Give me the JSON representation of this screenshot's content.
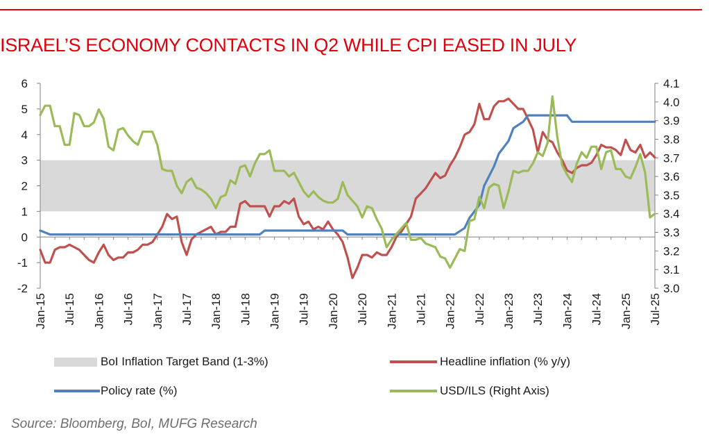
{
  "title": "ISRAEL’S ECONOMY CONTACTS IN Q2 WHILE CPI EASED IN JULY",
  "source": "Source: Bloomberg, BoI, MUFG Research",
  "colors": {
    "title": "#e0000b",
    "band": "#d9d9d9",
    "headline": "#c0504d",
    "policy": "#4f81bd",
    "usdils": "#9bbb59"
  },
  "legend": {
    "band": "BoI Inflation Target Band (1-3%)",
    "headline": "Headline inflation (% y/y)",
    "policy": "Policy rate (%)",
    "usdils": "USD/ILS (Right Axis)"
  },
  "chart_data": {
    "type": "line",
    "x_start": "Jan-15",
    "x_end": "Jul-25",
    "x_tick_labels": [
      "Jan-15",
      "Jul-15",
      "Jan-16",
      "Jul-16",
      "Jan-17",
      "Jul-17",
      "Jan-18",
      "Jul-18",
      "Jan-19",
      "Jul-19",
      "Jan-20",
      "Jul-20",
      "Jan-21",
      "Jul-21",
      "Jan-22",
      "Jul-22",
      "Jan-23",
      "Jul-23",
      "Jan-24",
      "Jul-24",
      "Jan-25",
      "Jul-25"
    ],
    "y_left": {
      "min": -2,
      "max": 6,
      "ticks": [
        "-2",
        "-1",
        "0",
        "1",
        "2",
        "3",
        "4",
        "5",
        "6"
      ]
    },
    "y_right": {
      "min": 3.0,
      "max": 4.1,
      "ticks": [
        "3.0",
        "3.1",
        "3.2",
        "3.3",
        "3.4",
        "3.5",
        "3.6",
        "3.7",
        "3.8",
        "3.9",
        "4.0",
        "4.1"
      ]
    },
    "band": {
      "name": "BoI Inflation Target Band (1-3%)",
      "low": 1,
      "high": 3
    },
    "series": [
      {
        "name": "Headline inflation (% y/y)",
        "axis": "left",
        "points": [
          [
            "Jan-15",
            -0.5
          ],
          [
            "Feb-15",
            -1.0
          ],
          [
            "Mar-15",
            -1.0
          ],
          [
            "Apr-15",
            -0.5
          ],
          [
            "May-15",
            -0.4
          ],
          [
            "Jun-15",
            -0.4
          ],
          [
            "Jul-15",
            -0.3
          ],
          [
            "Aug-15",
            -0.4
          ],
          [
            "Sep-15",
            -0.5
          ],
          [
            "Oct-15",
            -0.7
          ],
          [
            "Nov-15",
            -0.9
          ],
          [
            "Dec-15",
            -1.0
          ],
          [
            "Jan-16",
            -0.6
          ],
          [
            "Feb-16",
            -0.3
          ],
          [
            "Mar-16",
            -0.7
          ],
          [
            "Apr-16",
            -0.9
          ],
          [
            "May-16",
            -0.8
          ],
          [
            "Jun-16",
            -0.8
          ],
          [
            "Jul-16",
            -0.6
          ],
          [
            "Aug-16",
            -0.6
          ],
          [
            "Sep-16",
            -0.5
          ],
          [
            "Oct-16",
            -0.3
          ],
          [
            "Nov-16",
            -0.3
          ],
          [
            "Dec-16",
            -0.2
          ],
          [
            "Jan-17",
            0.1
          ],
          [
            "Feb-17",
            0.4
          ],
          [
            "Mar-17",
            0.9
          ],
          [
            "Apr-17",
            0.7
          ],
          [
            "May-17",
            0.8
          ],
          [
            "Jun-17",
            -0.2
          ],
          [
            "Jul-17",
            -0.7
          ],
          [
            "Aug-17",
            -0.1
          ],
          [
            "Sep-17",
            0.1
          ],
          [
            "Oct-17",
            0.2
          ],
          [
            "Nov-17",
            0.3
          ],
          [
            "Dec-17",
            0.4
          ],
          [
            "Jan-18",
            0.1
          ],
          [
            "Feb-18",
            0.2
          ],
          [
            "Mar-18",
            0.2
          ],
          [
            "Apr-18",
            0.4
          ],
          [
            "May-18",
            0.4
          ],
          [
            "Jun-18",
            1.3
          ],
          [
            "Jul-18",
            1.4
          ],
          [
            "Aug-18",
            1.2
          ],
          [
            "Sep-18",
            1.2
          ],
          [
            "Oct-18",
            1.2
          ],
          [
            "Nov-18",
            1.2
          ],
          [
            "Dec-18",
            0.8
          ],
          [
            "Jan-19",
            1.2
          ],
          [
            "Feb-19",
            1.2
          ],
          [
            "Mar-19",
            1.4
          ],
          [
            "Apr-19",
            1.3
          ],
          [
            "May-19",
            1.5
          ],
          [
            "Jun-19",
            0.8
          ],
          [
            "Jul-19",
            0.5
          ],
          [
            "Aug-19",
            0.6
          ],
          [
            "Sep-19",
            0.3
          ],
          [
            "Oct-19",
            0.4
          ],
          [
            "Nov-19",
            0.3
          ],
          [
            "Dec-19",
            0.6
          ],
          [
            "Jan-20",
            0.3
          ],
          [
            "Feb-20",
            0.1
          ],
          [
            "Mar-20",
            -0.2
          ],
          [
            "Apr-20",
            -0.8
          ],
          [
            "May-20",
            -1.6
          ],
          [
            "Jun-20",
            -1.2
          ],
          [
            "Jul-20",
            -0.7
          ],
          [
            "Aug-20",
            -0.7
          ],
          [
            "Sep-20",
            -0.8
          ],
          [
            "Oct-20",
            -0.6
          ],
          [
            "Nov-20",
            -0.7
          ],
          [
            "Dec-20",
            -0.7
          ],
          [
            "Jan-21",
            -0.4
          ],
          [
            "Feb-21",
            0.0
          ],
          [
            "Mar-21",
            0.2
          ],
          [
            "Apr-21",
            0.5
          ],
          [
            "May-21",
            0.8
          ],
          [
            "Jun-21",
            1.5
          ],
          [
            "Jul-21",
            1.7
          ],
          [
            "Aug-21",
            1.9
          ],
          [
            "Sep-21",
            2.2
          ],
          [
            "Oct-21",
            2.5
          ],
          [
            "Nov-21",
            2.3
          ],
          [
            "Dec-21",
            2.4
          ],
          [
            "Jan-22",
            2.8
          ],
          [
            "Feb-22",
            3.1
          ],
          [
            "Mar-22",
            3.5
          ],
          [
            "Apr-22",
            4.0
          ],
          [
            "May-22",
            4.1
          ],
          [
            "Jun-22",
            4.4
          ],
          [
            "Jul-22",
            5.2
          ],
          [
            "Aug-22",
            4.6
          ],
          [
            "Sep-22",
            4.6
          ],
          [
            "Oct-22",
            5.1
          ],
          [
            "Nov-22",
            5.3
          ],
          [
            "Dec-22",
            5.3
          ],
          [
            "Jan-23",
            5.4
          ],
          [
            "Feb-23",
            5.2
          ],
          [
            "Mar-23",
            5.0
          ],
          [
            "Apr-23",
            5.0
          ],
          [
            "May-23",
            4.6
          ],
          [
            "Jun-23",
            4.2
          ],
          [
            "Jul-23",
            3.3
          ],
          [
            "Aug-23",
            4.1
          ],
          [
            "Sep-23",
            3.8
          ],
          [
            "Oct-23",
            3.7
          ],
          [
            "Nov-23",
            3.3
          ],
          [
            "Dec-23",
            3.0
          ],
          [
            "Jan-24",
            2.6
          ],
          [
            "Feb-24",
            2.5
          ],
          [
            "Mar-24",
            2.7
          ],
          [
            "Apr-24",
            2.8
          ],
          [
            "May-24",
            2.8
          ],
          [
            "Jun-24",
            2.9
          ],
          [
            "Jul-24",
            3.2
          ],
          [
            "Aug-24",
            3.6
          ],
          [
            "Sep-24",
            3.5
          ],
          [
            "Oct-24",
            3.5
          ],
          [
            "Nov-24",
            3.4
          ],
          [
            "Dec-24",
            3.2
          ],
          [
            "Jan-25",
            3.8
          ],
          [
            "Feb-25",
            3.4
          ],
          [
            "Mar-25",
            3.3
          ],
          [
            "Apr-25",
            3.6
          ],
          [
            "May-25",
            3.1
          ],
          [
            "Jun-25",
            3.3
          ],
          [
            "Jul-25",
            3.1
          ]
        ]
      },
      {
        "name": "Policy rate (%)",
        "axis": "left",
        "points": [
          [
            "Jan-15",
            0.25
          ],
          [
            "Mar-15",
            0.1
          ],
          [
            "Oct-18",
            0.1
          ],
          [
            "Nov-18",
            0.25
          ],
          [
            "Mar-20",
            0.25
          ],
          [
            "Apr-20",
            0.1
          ],
          [
            "Feb-22",
            0.1
          ],
          [
            "Apr-22",
            0.35
          ],
          [
            "May-22",
            0.75
          ],
          [
            "Jul-22",
            1.25
          ],
          [
            "Aug-22",
            2.0
          ],
          [
            "Oct-22",
            2.75
          ],
          [
            "Nov-22",
            3.25
          ],
          [
            "Jan-23",
            3.75
          ],
          [
            "Feb-23",
            4.25
          ],
          [
            "Apr-23",
            4.5
          ],
          [
            "May-23",
            4.75
          ],
          [
            "Jan-24",
            4.75
          ],
          [
            "Feb-24",
            4.5
          ],
          [
            "Jul-25",
            4.5
          ]
        ]
      },
      {
        "name": "USD/ILS (Right Axis)",
        "axis": "right",
        "points": [
          [
            "Jan-15",
            3.93
          ],
          [
            "Feb-15",
            3.98
          ],
          [
            "Mar-15",
            3.98
          ],
          [
            "Apr-15",
            3.87
          ],
          [
            "May-15",
            3.87
          ],
          [
            "Jun-15",
            3.77
          ],
          [
            "Jul-15",
            3.77
          ],
          [
            "Aug-15",
            3.94
          ],
          [
            "Sep-15",
            3.93
          ],
          [
            "Oct-15",
            3.87
          ],
          [
            "Nov-15",
            3.87
          ],
          [
            "Dec-15",
            3.89
          ],
          [
            "Jan-16",
            3.96
          ],
          [
            "Feb-16",
            3.91
          ],
          [
            "Mar-16",
            3.76
          ],
          [
            "Apr-16",
            3.74
          ],
          [
            "May-16",
            3.85
          ],
          [
            "Jun-16",
            3.86
          ],
          [
            "Jul-16",
            3.82
          ],
          [
            "Aug-16",
            3.79
          ],
          [
            "Sep-16",
            3.77
          ],
          [
            "Oct-16",
            3.84
          ],
          [
            "Nov-16",
            3.84
          ],
          [
            "Dec-16",
            3.84
          ],
          [
            "Jan-17",
            3.77
          ],
          [
            "Feb-17",
            3.64
          ],
          [
            "Mar-17",
            3.63
          ],
          [
            "Apr-17",
            3.63
          ],
          [
            "May-17",
            3.55
          ],
          [
            "Jun-17",
            3.51
          ],
          [
            "Jul-17",
            3.57
          ],
          [
            "Aug-17",
            3.59
          ],
          [
            "Sep-17",
            3.54
          ],
          [
            "Oct-17",
            3.53
          ],
          [
            "Nov-17",
            3.51
          ],
          [
            "Dec-17",
            3.48
          ],
          [
            "Jan-18",
            3.43
          ],
          [
            "Feb-18",
            3.49
          ],
          [
            "Mar-18",
            3.5
          ],
          [
            "Apr-18",
            3.58
          ],
          [
            "May-18",
            3.56
          ],
          [
            "Jun-18",
            3.65
          ],
          [
            "Jul-18",
            3.66
          ],
          [
            "Aug-18",
            3.6
          ],
          [
            "Sep-18",
            3.67
          ],
          [
            "Oct-18",
            3.72
          ],
          [
            "Nov-18",
            3.72
          ],
          [
            "Dec-18",
            3.74
          ],
          [
            "Jan-19",
            3.63
          ],
          [
            "Feb-19",
            3.63
          ],
          [
            "Mar-19",
            3.63
          ],
          [
            "Apr-19",
            3.6
          ],
          [
            "May-19",
            3.62
          ],
          [
            "Jun-19",
            3.57
          ],
          [
            "Jul-19",
            3.52
          ],
          [
            "Aug-19",
            3.49
          ],
          [
            "Sep-19",
            3.52
          ],
          [
            "Oct-19",
            3.49
          ],
          [
            "Nov-19",
            3.47
          ],
          [
            "Dec-19",
            3.46
          ],
          [
            "Jan-20",
            3.46
          ],
          [
            "Feb-20",
            3.48
          ],
          [
            "Mar-20",
            3.57
          ],
          [
            "Apr-20",
            3.5
          ],
          [
            "May-20",
            3.47
          ],
          [
            "Jun-20",
            3.44
          ],
          [
            "Jul-20",
            3.38
          ],
          [
            "Aug-20",
            3.44
          ],
          [
            "Sep-20",
            3.43
          ],
          [
            "Oct-20",
            3.37
          ],
          [
            "Nov-20",
            3.32
          ],
          [
            "Dec-20",
            3.22
          ],
          [
            "Jan-21",
            3.26
          ],
          [
            "Feb-21",
            3.29
          ],
          [
            "Mar-21",
            3.32
          ],
          [
            "Apr-21",
            3.35
          ],
          [
            "May-21",
            3.26
          ],
          [
            "Jun-21",
            3.26
          ],
          [
            "Jul-21",
            3.27
          ],
          [
            "Aug-21",
            3.24
          ],
          [
            "Sep-21",
            3.23
          ],
          [
            "Oct-21",
            3.22
          ],
          [
            "Nov-21",
            3.17
          ],
          [
            "Dec-21",
            3.16
          ],
          [
            "Jan-22",
            3.11
          ],
          [
            "Feb-22",
            3.16
          ],
          [
            "Mar-22",
            3.21
          ],
          [
            "Apr-22",
            3.2
          ],
          [
            "May-22",
            3.36
          ],
          [
            "Jun-22",
            3.37
          ],
          [
            "Jul-22",
            3.49
          ],
          [
            "Aug-22",
            3.43
          ],
          [
            "Sep-22",
            3.54
          ],
          [
            "Oct-22",
            3.56
          ],
          [
            "Nov-22",
            3.55
          ],
          [
            "Dec-22",
            3.43
          ],
          [
            "Jan-23",
            3.52
          ],
          [
            "Feb-23",
            3.63
          ],
          [
            "Mar-23",
            3.62
          ],
          [
            "Apr-23",
            3.63
          ],
          [
            "May-23",
            3.63
          ],
          [
            "Jun-23",
            3.67
          ],
          [
            "Jul-23",
            3.73
          ],
          [
            "Aug-23",
            3.71
          ],
          [
            "Sep-23",
            3.78
          ],
          [
            "Oct-23",
            4.03
          ],
          [
            "Nov-23",
            3.81
          ],
          [
            "Dec-23",
            3.66
          ],
          [
            "Jan-24",
            3.61
          ],
          [
            "Feb-24",
            3.57
          ],
          [
            "Mar-24",
            3.67
          ],
          [
            "Apr-24",
            3.73
          ],
          [
            "May-24",
            3.7
          ],
          [
            "Jun-24",
            3.76
          ],
          [
            "Jul-24",
            3.76
          ],
          [
            "Aug-24",
            3.64
          ],
          [
            "Sep-24",
            3.73
          ],
          [
            "Oct-24",
            3.74
          ],
          [
            "Nov-24",
            3.64
          ],
          [
            "Dec-24",
            3.64
          ],
          [
            "Jan-25",
            3.6
          ],
          [
            "Feb-25",
            3.59
          ],
          [
            "Mar-25",
            3.65
          ],
          [
            "Apr-25",
            3.72
          ],
          [
            "May-25",
            3.62
          ],
          [
            "Jun-25",
            3.38
          ],
          [
            "Jul-25",
            3.4
          ]
        ]
      }
    ]
  }
}
